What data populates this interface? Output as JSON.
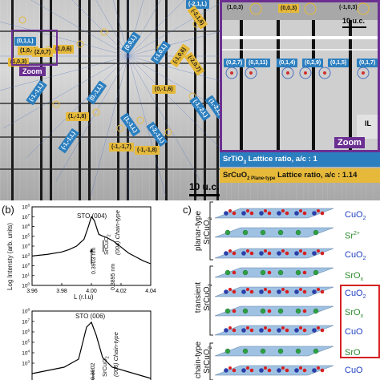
{
  "panel_a": {
    "scale_bar": "10 u.c.",
    "zoom_label": "Zoom",
    "inset": {
      "scale_bar": "10 u.c.",
      "zoom_label": "Zoom",
      "il_label": "IL",
      "top_tags": [
        {
          "text": "(1,0,3)",
          "kind": "plain"
        },
        {
          "text": "(0,0,3)",
          "kind": "gold"
        },
        {
          "text": "(-1,0,3)",
          "kind": "plain"
        }
      ],
      "row_tags": [
        {
          "text": "(0,2,7)",
          "kind": "blue"
        },
        {
          "text": "(0,3,11)",
          "kind": "blue"
        },
        {
          "text": "(0,1,4)",
          "kind": "blue"
        },
        {
          "text": "(0,2,9)",
          "kind": "blue"
        },
        {
          "text": "(0,1,5)",
          "kind": "blue"
        },
        {
          "text": "(0,1,7)",
          "kind": "blue"
        }
      ]
    },
    "legend_blue": {
      "prefix": "SrTiO",
      "sub": "3",
      "rest": " Lattice ratio, a/c : 1"
    },
    "legend_gold": {
      "prefix": "SrCuO",
      "sub": "2 Plane-type",
      "rest": " Lattice ratio, a/c : 1.14"
    },
    "tags": [
      {
        "text": "(-2,1,L)",
        "kind": "blue"
      },
      {
        "text": "(-2,1,6)",
        "kind": "gold"
      },
      {
        "text": "(0,1,L)",
        "kind": "blue"
      },
      {
        "text": "(1,0,4)",
        "kind": "gold"
      },
      {
        "text": "(2,0,7)",
        "kind": "gold"
      },
      {
        "text": "(1,0,3)",
        "kind": "gold"
      },
      {
        "text": "(1,0,6)",
        "kind": "gold"
      },
      {
        "text": "(0,0,L)",
        "kind": "blue"
      },
      {
        "text": "(-1,0,L)",
        "kind": "blue"
      },
      {
        "text": "(-1,0,6)",
        "kind": "gold"
      },
      {
        "text": "(-2,0,7)",
        "kind": "gold"
      },
      {
        "text": "(-1,-1,L)",
        "kind": "blue"
      },
      {
        "text": "(0,-1,L)",
        "kind": "blue"
      },
      {
        "text": "(1,-1,8)",
        "kind": "gold"
      },
      {
        "text": "(0,-1,6)",
        "kind": "gold"
      },
      {
        "text": "(-1,-1,7)",
        "kind": "gold"
      },
      {
        "text": "(-1,-1,8)",
        "kind": "gold"
      },
      {
        "text": "(-1,-1,L)",
        "kind": "blue"
      },
      {
        "text": "(1,-1,L)",
        "kind": "blue"
      },
      {
        "text": "(-2,-1,L)",
        "kind": "blue"
      },
      {
        "text": "(-1,-2,L)",
        "kind": "blue"
      },
      {
        "text": "(1,-2,L)",
        "kind": "blue"
      }
    ]
  },
  "panel_b": {
    "letter": "(b)",
    "chart_data": [
      {
        "type": "line",
        "title": "",
        "xlabel": "L (r.l.u)",
        "ylabel": "Log Intensty (arb. units)",
        "xlim": [
          3.96,
          4.04
        ],
        "ylim_log10": [
          0,
          8
        ],
        "x_ticks": [
          "3.96",
          "3.98",
          "4.00",
          "4.02",
          "4.04"
        ],
        "y_ticks": [
          "10^0",
          "10^1",
          "10^2",
          "10^3",
          "10^4",
          "10^5",
          "10^6",
          "10^7",
          "10^8"
        ],
        "annotations": {
          "peak_label": "STO (004)",
          "film_label_line1": "SrCuO",
          "film_label_sub": "2",
          "film_label_line2": "(004) Chain-type",
          "d_left": "0.3903 nm",
          "d_right": "0.3895 nm"
        },
        "x": [
          3.96,
          3.97,
          3.98,
          3.985,
          3.99,
          3.995,
          3.998,
          4.0,
          4.002,
          4.005,
          4.008,
          4.01,
          4.015,
          4.02,
          4.025,
          4.03,
          4.035,
          4.04
        ],
        "log10_y": [
          3.0,
          3.15,
          3.4,
          3.65,
          4.0,
          4.7,
          6.0,
          7.0,
          6.6,
          5.2,
          5.0,
          4.9,
          4.5,
          3.9,
          3.3,
          2.9,
          2.5,
          2.2
        ]
      },
      {
        "type": "line",
        "title": "",
        "annotations": {
          "peak_label": "STO (006)",
          "film_label_line1": "SrCuO",
          "film_label_sub": "2",
          "film_label_line2": "(006) Chain-type",
          "d_left": "0.3902"
        }
      }
    ]
  },
  "panel_c": {
    "letter": "c)",
    "group_labels": {
      "planar_line1": "planar-type",
      "planar_line2": "SrCuO",
      "planar_sub": "2",
      "transient_line1": "transient",
      "transient_line2": "SrCuO",
      "transient_sub": "2",
      "chain_line1": "chain-type",
      "chain_line2": "SrCuO",
      "chain_sub": "2"
    },
    "layers": [
      {
        "text": "CuO",
        "sub": "2",
        "sup": "",
        "color": "#1f3fbf"
      },
      {
        "text": "Sr",
        "sub": "",
        "sup": "2+",
        "color": "#2e8b2e"
      },
      {
        "text": "CuO",
        "sub": "2",
        "sup": "",
        "color": "#1f3fbf"
      },
      {
        "text": "SrO",
        "sub": "x",
        "sup": "",
        "color": "#2e8b2e"
      },
      {
        "text": "CuO",
        "sub": "2",
        "sup": "",
        "color": "#1f3fbf"
      },
      {
        "text": "SrO",
        "sub": "x",
        "sup": "",
        "color": "#2e8b2e"
      },
      {
        "text": "CuO",
        "sub": "",
        "sup": "",
        "color": "#1f3fbf"
      },
      {
        "text": "SrO",
        "sub": "",
        "sup": "",
        "color": "#2e8b2e"
      },
      {
        "text": "CuO",
        "sub": "",
        "sup": "",
        "color": "#1f3fbf"
      },
      {
        "text": "SrO",
        "sub": "",
        "sup": "",
        "color": "#2e8b2e"
      }
    ]
  }
}
